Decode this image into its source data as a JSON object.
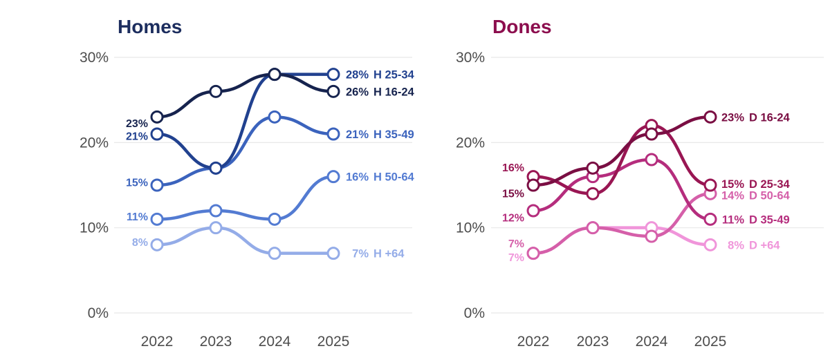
{
  "page": {
    "background": "#ffffff"
  },
  "chart_data": [
    {
      "type": "line",
      "title": "Homes",
      "title_color": "#1c2d5e",
      "x": [
        "2022",
        "2023",
        "2024",
        "2025"
      ],
      "xlabel": "",
      "ylabel": "",
      "ylim": [
        0,
        31
      ],
      "grid": "horizontal",
      "legend_position": "end-of-line-labels",
      "tick_color": "#4d4d4d",
      "grid_color": "#e8e8e8",
      "y_ticks": [
        {
          "label": "30%",
          "value": 30
        },
        {
          "label": "20%",
          "value": 20
        },
        {
          "label": "10%",
          "value": 10
        },
        {
          "label": "0%",
          "value": 0
        }
      ],
      "series": [
        {
          "name": "H 16-24",
          "color": "#16234e",
          "values": [
            23,
            26,
            28,
            26
          ],
          "start_label": "23%",
          "end_value": "26%",
          "end_name": "H 16-24",
          "start_dy": 9,
          "end_dy": 0
        },
        {
          "name": "H 25-34",
          "color": "#21418f",
          "values": [
            21,
            17,
            28,
            28
          ],
          "start_label": "21%",
          "end_value": "28%",
          "end_name": "H 25-34",
          "start_dy": 3,
          "end_dy": 0
        },
        {
          "name": "H 35-49",
          "color": "#3b63bd",
          "values": [
            15,
            17,
            23,
            21
          ],
          "start_label": "15%",
          "end_value": "21%",
          "end_name": "H 35-49",
          "start_dy": -4,
          "end_dy": 0
        },
        {
          "name": "H 50-64",
          "color": "#537bd2",
          "values": [
            11,
            12,
            11,
            16
          ],
          "start_label": "11%",
          "end_value": "16%",
          "end_name": "H 50-64",
          "start_dy": -4,
          "end_dy": 0
        },
        {
          "name": "H +64",
          "color": "#94ace8",
          "values": [
            8,
            10,
            7,
            7
          ],
          "start_label": "8%",
          "end_value": "7%",
          "end_name": "H +64",
          "start_dy": -4,
          "end_dy": 0
        }
      ]
    },
    {
      "type": "line",
      "title": "Dones",
      "title_color": "#8c0e4e",
      "x": [
        "2022",
        "2023",
        "2024",
        "2025"
      ],
      "xlabel": "",
      "ylabel": "",
      "ylim": [
        0,
        31
      ],
      "grid": "horizontal",
      "legend_position": "end-of-line-labels",
      "tick_color": "#4d4d4d",
      "grid_color": "#e8e8e8",
      "y_ticks": [
        {
          "label": "30%",
          "value": 30
        },
        {
          "label": "20%",
          "value": 20
        },
        {
          "label": "10%",
          "value": 10
        },
        {
          "label": "0%",
          "value": 0
        }
      ],
      "series": [
        {
          "name": "D 16-24",
          "color": "#7a0e43",
          "values": [
            15,
            17,
            21,
            23
          ],
          "start_label": "15%",
          "end_value": "23%",
          "end_name": "D 16-24",
          "start_dy": 12,
          "end_dy": 0
        },
        {
          "name": "D 25-34",
          "color": "#991653",
          "values": [
            16,
            14,
            22,
            15
          ],
          "start_label": "16%",
          "end_value": "15%",
          "end_name": "D 25-34",
          "start_dy": -13,
          "end_dy": -2
        },
        {
          "name": "D 35-49",
          "color": "#b52d7d",
          "values": [
            12,
            16,
            18,
            11
          ],
          "start_label": "12%",
          "end_value": "11%",
          "end_name": "D 35-49",
          "start_dy": 10,
          "end_dy": 0
        },
        {
          "name": "D 50-64",
          "color": "#d55fa9",
          "values": [
            7,
            10,
            9,
            14
          ],
          "start_label": "7%",
          "end_value": "14%",
          "end_name": "D 50-64",
          "start_dy": -14,
          "end_dy": 2
        },
        {
          "name": "D +64",
          "color": "#f095da",
          "values": [
            7,
            10,
            10,
            8
          ],
          "start_label": "7%",
          "end_value": "8%",
          "end_name": "D +64",
          "start_dy": 6,
          "end_dy": 0
        }
      ]
    }
  ]
}
